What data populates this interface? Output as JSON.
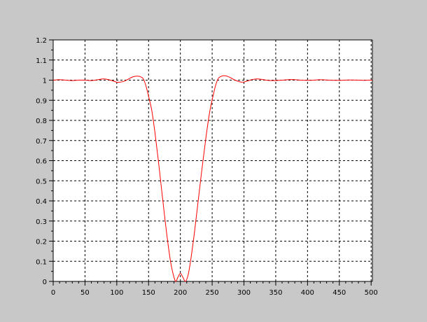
{
  "chart_data": {
    "type": "line",
    "title": "",
    "xlabel": "",
    "ylabel": "",
    "xlim": [
      0,
      502
    ],
    "ylim": [
      0,
      1.2
    ],
    "x_ticks": [
      0,
      50,
      100,
      150,
      200,
      250,
      300,
      350,
      400,
      450,
      500
    ],
    "y_ticks": [
      0,
      0.1,
      0.2,
      0.3,
      0.4,
      0.5,
      0.6,
      0.7,
      0.8,
      0.9,
      1,
      1.1,
      1.2
    ],
    "x_tick_labels": [
      "0",
      "50",
      "100",
      "150",
      "200",
      "250",
      "300",
      "350",
      "400",
      "450",
      "500"
    ],
    "y_tick_labels": [
      "0",
      "0.1",
      "0.2",
      "0.3",
      "0.4",
      "0.5",
      "0.6",
      "0.7",
      "0.8",
      "0.9",
      "1",
      "1.1",
      "1.2"
    ],
    "grid": true,
    "grid_style": "dashed",
    "colors": {
      "background": "#c8c8c8",
      "plot_area": "#ffffff",
      "line": "#ff0000",
      "grid": "#000000"
    },
    "series": [
      {
        "color": "#ff0000",
        "points": [
          [
            0,
            1.0
          ],
          [
            10,
            1.002
          ],
          [
            20,
            1.0
          ],
          [
            30,
            0.998
          ],
          [
            40,
            1.0
          ],
          [
            50,
            1.0
          ],
          [
            60,
            0.998
          ],
          [
            70,
            1.002
          ],
          [
            78,
            1.006
          ],
          [
            85,
            1.004
          ],
          [
            92,
            0.998
          ],
          [
            100,
            0.99
          ],
          [
            105,
            0.99
          ],
          [
            112,
            0.995
          ],
          [
            118,
            1.005
          ],
          [
            125,
            1.016
          ],
          [
            132,
            1.02
          ],
          [
            138,
            1.016
          ],
          [
            142,
            1.005
          ],
          [
            146,
            0.97
          ],
          [
            150,
            0.92
          ],
          [
            155,
            0.85
          ],
          [
            160,
            0.74
          ],
          [
            165,
            0.61
          ],
          [
            170,
            0.47
          ],
          [
            175,
            0.33
          ],
          [
            180,
            0.2
          ],
          [
            185,
            0.09
          ],
          [
            190,
            0.02
          ],
          [
            193,
            0.0
          ],
          [
            196,
            0.02
          ],
          [
            200,
            0.04
          ],
          [
            204,
            0.02
          ],
          [
            208,
            0.0
          ],
          [
            212,
            0.03
          ],
          [
            216,
            0.1
          ],
          [
            222,
            0.24
          ],
          [
            228,
            0.4
          ],
          [
            234,
            0.56
          ],
          [
            240,
            0.71
          ],
          [
            246,
            0.84
          ],
          [
            252,
            0.93
          ],
          [
            256,
            0.98
          ],
          [
            260,
            1.01
          ],
          [
            265,
            1.02
          ],
          [
            270,
            1.022
          ],
          [
            275,
            1.018
          ],
          [
            280,
            1.01
          ],
          [
            286,
            1.0
          ],
          [
            292,
            0.993
          ],
          [
            298,
            0.99
          ],
          [
            305,
            0.995
          ],
          [
            312,
            1.002
          ],
          [
            320,
            1.006
          ],
          [
            328,
            1.004
          ],
          [
            335,
            1.0
          ],
          [
            345,
            0.998
          ],
          [
            360,
            1.0
          ],
          [
            375,
            1.003
          ],
          [
            390,
            1.0
          ],
          [
            405,
            0.999
          ],
          [
            420,
            1.002
          ],
          [
            435,
            1.0
          ],
          [
            450,
            0.999
          ],
          [
            465,
            1.001
          ],
          [
            480,
            1.0
          ],
          [
            490,
            0.999
          ],
          [
            495,
            1.0
          ],
          [
            502,
            1.0
          ]
        ]
      }
    ]
  }
}
